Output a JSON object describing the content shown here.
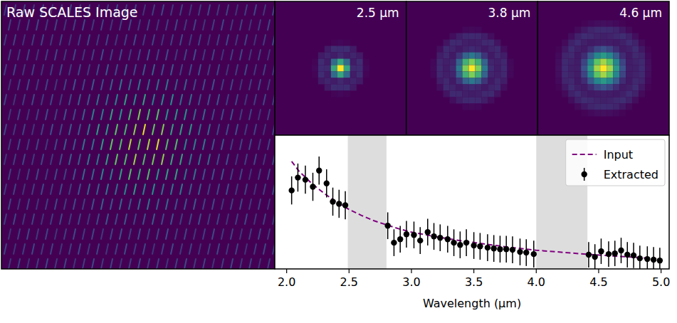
{
  "raw_image": {
    "title": "Raw SCALES Image"
  },
  "psf_panels": [
    {
      "wavelength": 2.5,
      "label": "2.5 μm"
    },
    {
      "wavelength": 3.8,
      "label": "3.8 μm"
    },
    {
      "wavelength": 4.6,
      "label": "4.6 μm"
    }
  ],
  "chart_data": {
    "type": "scatter",
    "x_label": "Wavelength (μm)",
    "xlim": [
      1.905,
      5.065
    ],
    "ylim": [
      0,
      1
    ],
    "xticks": [
      {
        "value": 2,
        "label": "2.0"
      },
      2.5,
      {
        "value": 3,
        "label": "3.0"
      },
      3.5,
      {
        "value": 4,
        "label": "4.0"
      },
      4.5,
      {
        "value": 5,
        "label": "5.0"
      }
    ],
    "tick_labels": "x",
    "legend": "upper right",
    "shaded_regions": [
      [
        2.49,
        2.8
      ],
      [
        4.0,
        4.41
      ]
    ],
    "series": [
      {
        "name": "Input",
        "type": "line",
        "line_style": "dashed",
        "color": "#800080",
        "x": [
          2.04,
          2.1,
          2.2,
          2.3,
          2.4,
          2.5,
          2.6,
          2.7,
          2.8,
          2.9,
          3.0,
          3.2,
          3.4,
          3.6,
          3.8,
          4.0,
          4.2,
          4.4,
          4.6,
          4.8,
          5.0
        ],
        "values": [
          0.804,
          0.73,
          0.64,
          0.565,
          0.5,
          0.445,
          0.4,
          0.36,
          0.33,
          0.3,
          0.275,
          0.24,
          0.21,
          0.185,
          0.16,
          0.14,
          0.125,
          0.11,
          0.098,
          0.086,
          0.074
        ]
      },
      {
        "name": "Extracted",
        "type": "scatter",
        "marker": "circle",
        "color": "#000000",
        "x": [
          2.04,
          2.09,
          2.15,
          2.21,
          2.26,
          2.32,
          2.37,
          2.42,
          2.47,
          2.81,
          2.86,
          2.91,
          2.96,
          3.02,
          3.07,
          3.13,
          3.18,
          3.23,
          3.29,
          3.34,
          3.39,
          3.44,
          3.5,
          3.55,
          3.61,
          3.66,
          3.71,
          3.76,
          3.81,
          3.87,
          3.92,
          3.98,
          4.42,
          4.47,
          4.52,
          4.58,
          4.63,
          4.68,
          4.73,
          4.78,
          4.83,
          4.89,
          4.94,
          4.99
        ],
        "values": [
          0.587,
          0.683,
          0.667,
          0.614,
          0.735,
          0.64,
          0.503,
          0.487,
          0.476,
          0.323,
          0.196,
          0.222,
          0.259,
          0.254,
          0.212,
          0.275,
          0.243,
          0.233,
          0.222,
          0.196,
          0.18,
          0.196,
          0.175,
          0.169,
          0.159,
          0.153,
          0.148,
          0.148,
          0.143,
          0.127,
          0.122,
          0.111,
          0.106,
          0.09,
          0.132,
          0.111,
          0.116,
          0.138,
          0.106,
          0.101,
          0.079,
          0.074,
          0.069,
          0.063
        ],
        "errors": [
          0.105,
          0.105,
          0.105,
          0.105,
          0.105,
          0.105,
          0.105,
          0.105,
          0.105,
          0.1,
          0.1,
          0.1,
          0.1,
          0.1,
          0.1,
          0.1,
          0.1,
          0.1,
          0.1,
          0.1,
          0.1,
          0.1,
          0.1,
          0.1,
          0.1,
          0.1,
          0.1,
          0.1,
          0.1,
          0.1,
          0.1,
          0.1,
          0.095,
          0.095,
          0.095,
          0.095,
          0.095,
          0.095,
          0.095,
          0.095,
          0.095,
          0.095,
          0.095,
          0.095
        ]
      }
    ]
  }
}
